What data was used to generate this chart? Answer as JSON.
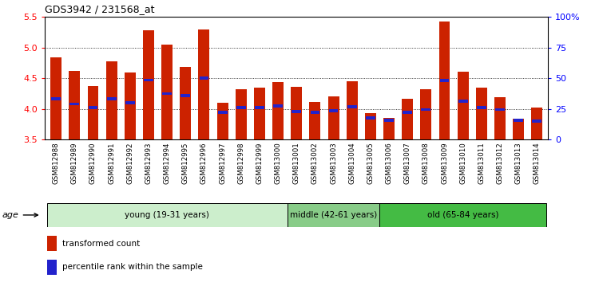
{
  "title": "GDS3942 / 231568_at",
  "samples": [
    "GSM812988",
    "GSM812989",
    "GSM812990",
    "GSM812991",
    "GSM812992",
    "GSM812993",
    "GSM812994",
    "GSM812995",
    "GSM812996",
    "GSM812997",
    "GSM812998",
    "GSM812999",
    "GSM813000",
    "GSM813001",
    "GSM813002",
    "GSM813003",
    "GSM813004",
    "GSM813005",
    "GSM813006",
    "GSM813007",
    "GSM813008",
    "GSM813009",
    "GSM813010",
    "GSM813011",
    "GSM813012",
    "GSM813013",
    "GSM813014"
  ],
  "transformed_count": [
    4.84,
    4.62,
    4.37,
    4.78,
    4.59,
    5.28,
    5.05,
    4.68,
    5.3,
    4.1,
    4.32,
    4.35,
    4.44,
    4.36,
    4.11,
    4.21,
    4.45,
    3.93,
    3.85,
    4.16,
    4.32,
    5.42,
    4.61,
    4.35,
    4.19,
    3.84,
    4.02
  ],
  "percentile_rank": [
    4.16,
    4.08,
    4.02,
    4.17,
    4.1,
    4.47,
    4.25,
    4.22,
    4.5,
    3.94,
    4.02,
    4.02,
    4.05,
    3.96,
    3.95,
    3.97,
    4.04,
    3.85,
    3.82,
    3.95,
    3.99,
    4.46,
    4.13,
    4.02,
    3.99,
    3.82,
    3.8
  ],
  "ylim_left": [
    3.5,
    5.5
  ],
  "yticks_left": [
    3.5,
    4.0,
    4.5,
    5.0,
    5.5
  ],
  "yticks_right_vals": [
    0,
    25,
    50,
    75,
    100
  ],
  "yticklabels_right": [
    "0",
    "25",
    "50",
    "75",
    "100%"
  ],
  "bar_color": "#cc2200",
  "percentile_color": "#2222cc",
  "group_ranges": [
    {
      "start": 0,
      "end": 12,
      "label": "young (19-31 years)",
      "color": "#cceecc"
    },
    {
      "start": 13,
      "end": 17,
      "label": "middle (42-61 years)",
      "color": "#88cc88"
    },
    {
      "start": 18,
      "end": 26,
      "label": "old (65-84 years)",
      "color": "#44bb44"
    }
  ],
  "legend_items": [
    {
      "label": "transformed count",
      "color": "#cc2200"
    },
    {
      "label": "percentile rank within the sample",
      "color": "#2222cc"
    }
  ],
  "age_label": "age"
}
